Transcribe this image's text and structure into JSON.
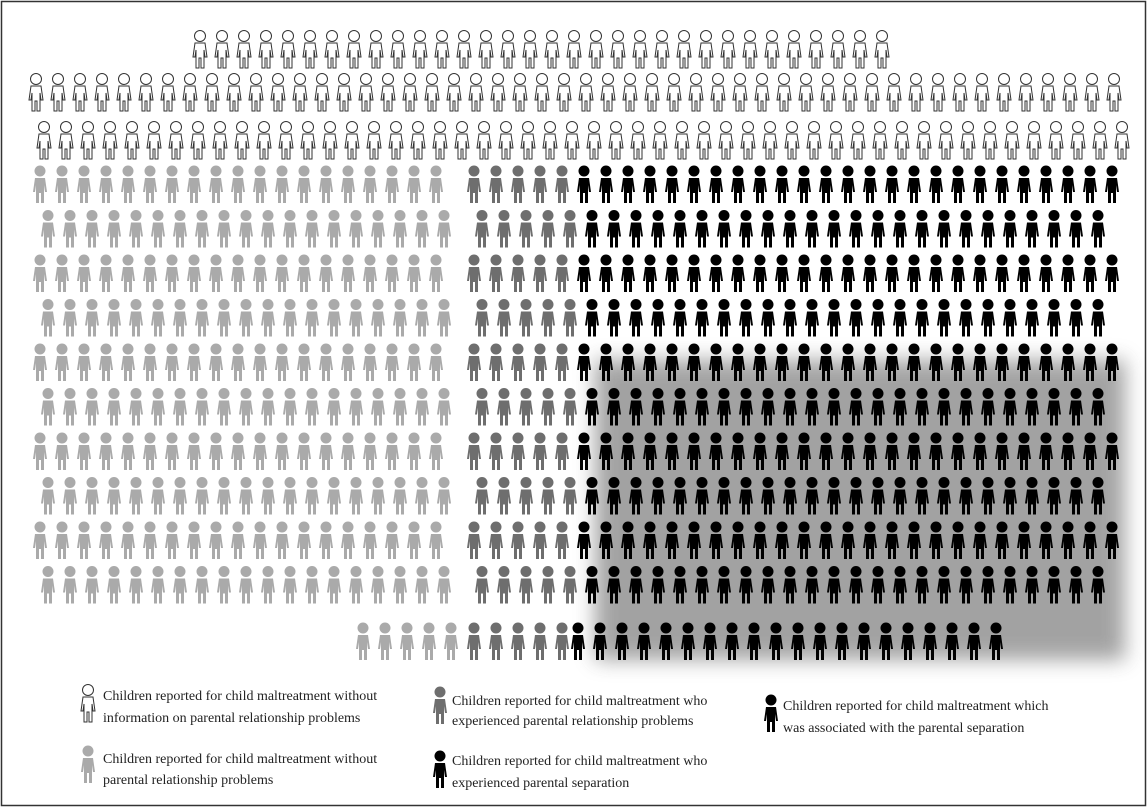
{
  "legend": {
    "items": [
      {
        "lines": [
          "Children reported for child maltreatment without",
          "information on parental relationship problems"
        ]
      },
      {
        "lines": [
          "Children reported for child maltreatment who",
          "experienced parental relationship problems"
        ]
      },
      {
        "lines": [
          "Children reported for child maltreatment which",
          "was associated with the parental separation"
        ]
      },
      {
        "lines": [
          "Children reported for child maltreatment without",
          "parental relationship problems"
        ]
      },
      {
        "lines": [
          "Children reported for child maltreatment who",
          "experienced parental separation"
        ]
      }
    ]
  }
}
